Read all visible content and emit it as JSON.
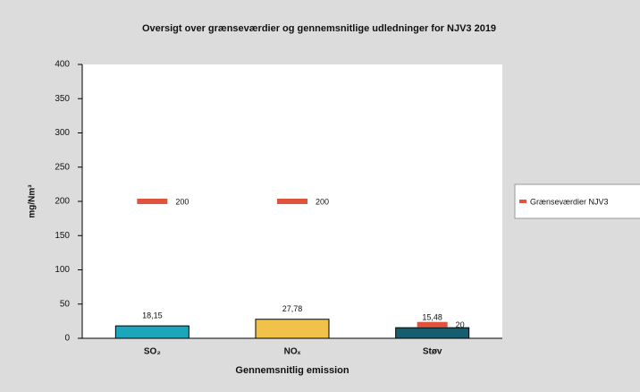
{
  "chart_data": {
    "type": "bar",
    "title": "Oversigt over grænseværdier og gennemsnitlige udledninger for NJV3 2019",
    "y_label": "mg/Nm³",
    "x_label": "Gennemsnitlig emission",
    "categories": [
      "SO₂",
      "NOₓ",
      "Støv"
    ],
    "series": [
      {
        "colors": [
          "#1ba6bb",
          "#f2c14a",
          "#155e70"
        ],
        "values": [
          18.15,
          27.78,
          15.48
        ],
        "value_labels": [
          "18,15",
          "27,78",
          "15,48"
        ]
      },
      {
        "name": "Grænseværdier NJV3",
        "type": "marker",
        "color": "#e0533d",
        "values": [
          200,
          200,
          20
        ]
      }
    ],
    "ylim": [
      0,
      400
    ],
    "yticks": [
      0,
      50,
      100,
      150,
      200,
      250,
      300,
      350,
      400
    ],
    "legend": "right"
  }
}
